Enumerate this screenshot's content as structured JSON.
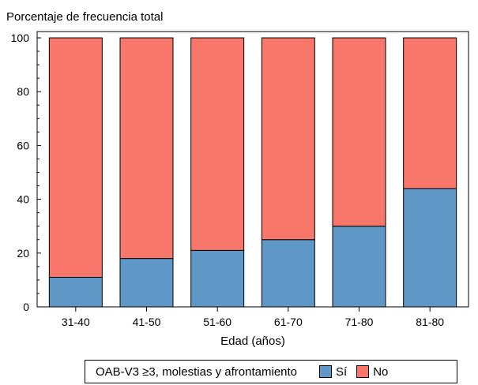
{
  "chart_data": {
    "type": "bar",
    "stacked": true,
    "title": "",
    "ylabel": "Porcentaje de frecuencia total",
    "xlabel": "Edad (años)",
    "categories": [
      "31-40",
      "41-50",
      "51-60",
      "61-70",
      "71-80",
      "81-80"
    ],
    "series": [
      {
        "name": "Sí",
        "values": [
          11,
          18,
          21,
          25,
          30,
          44
        ],
        "color": "#5f97c7"
      },
      {
        "name": "No",
        "values": [
          89,
          82,
          79,
          75,
          70,
          56
        ],
        "color": "#f9776a"
      }
    ],
    "ylim": [
      0,
      100
    ],
    "yticks": [
      0,
      20,
      40,
      60,
      80,
      100
    ],
    "grid": false,
    "legend": {
      "title": "OAB-V3 ≥3, molestias y afrontamiento",
      "position": "bottom"
    }
  }
}
